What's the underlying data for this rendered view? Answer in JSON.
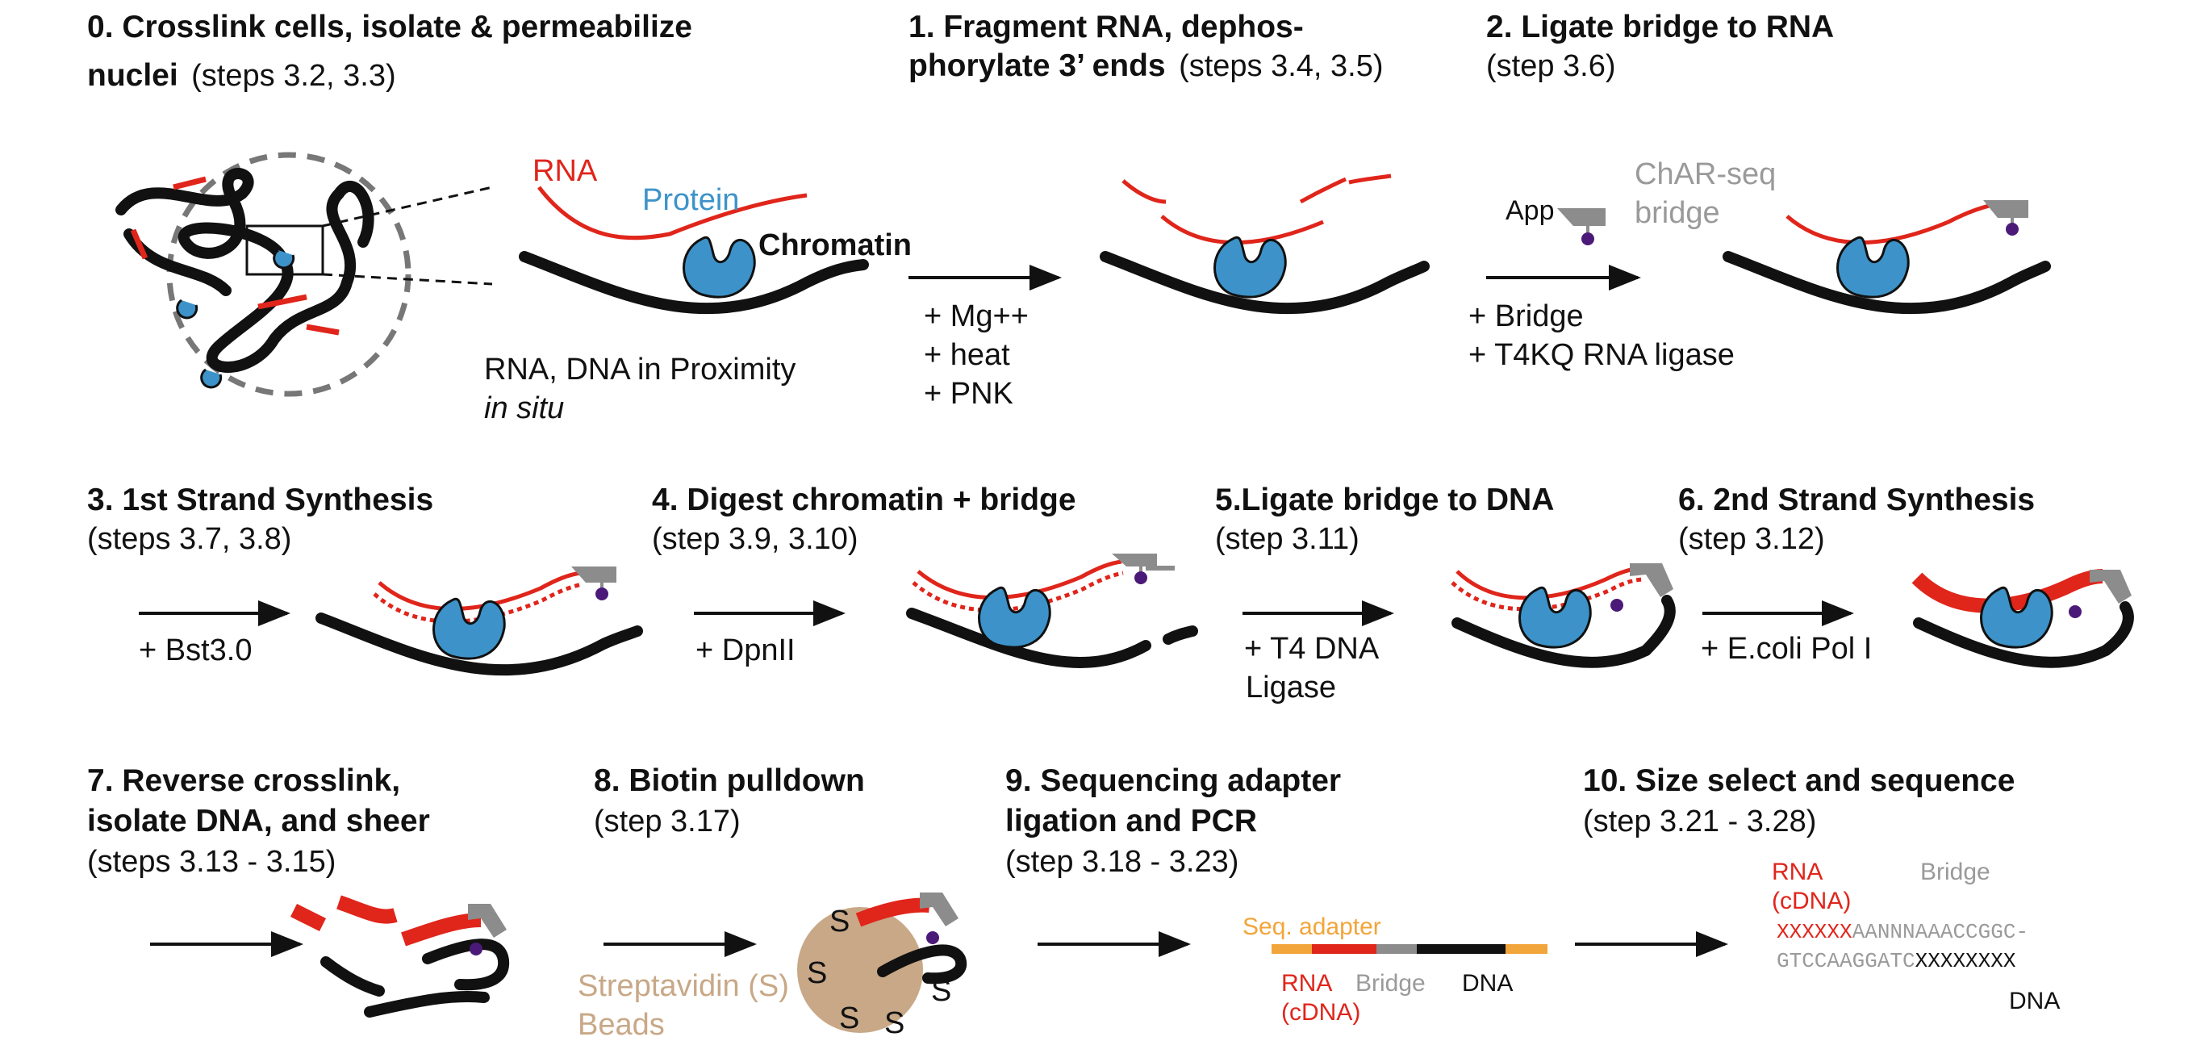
{
  "steps": {
    "s0": {
      "title1": "0. Crosslink cells, isolate & permeabilize",
      "title2": "nuclei",
      "steps": "(steps 3.2, 3.3)"
    },
    "s1": {
      "title1": "1. Fragment RNA, dephos-",
      "title2": "phorylate 3’ ends",
      "steps": "(steps 3.4, 3.5)",
      "reagents": [
        "+ Mg++",
        "+ heat",
        "+ PNK"
      ]
    },
    "s2": {
      "title": "2. Ligate bridge to RNA",
      "steps": "(step 3.6)",
      "reagents": [
        "+ Bridge",
        "+ T4KQ RNA ligase"
      ]
    },
    "s3": {
      "title": "3. 1st Strand Synthesis",
      "steps": "(steps 3.7, 3.8)",
      "reagent": "+ Bst3.0"
    },
    "s4": {
      "title": "4. Digest chromatin + bridge",
      "steps": "(step 3.9, 3.10)",
      "reagent": "+ DpnII"
    },
    "s5": {
      "title": "5.Ligate bridge to DNA",
      "steps": "(step 3.11)",
      "reagents": [
        "+ T4 DNA",
        "Ligase"
      ]
    },
    "s6": {
      "title": "6. 2nd Strand Synthesis",
      "steps": "(step 3.12)",
      "reagent": "+ E.coli Pol I"
    },
    "s7": {
      "title1": "7. Reverse crosslink,",
      "title2": "isolate DNA, and sheer",
      "steps": "(steps 3.13 - 3.15)"
    },
    "s8": {
      "title": "8. Biotin pulldown",
      "steps": "(step 3.17)"
    },
    "s9": {
      "title1": "9. Sequencing adapter",
      "title2": "ligation and PCR",
      "steps": "(step 3.18 - 3.23)"
    },
    "s10": {
      "title": "10. Size select and sequence",
      "steps": "(step 3.21 - 3.28)"
    }
  },
  "labels": {
    "rna": "RNA",
    "protein": "Protein",
    "chromatin": "Chromatin",
    "proximity": "RNA, DNA in Proximity",
    "in_situ": "in situ",
    "app": "App",
    "charseq1": "ChAR-seq",
    "charseq2": "bridge",
    "strep1": "Streptavidin (S)",
    "strep2": "Beads",
    "s_letter": "S",
    "seq_adapter": "Seq. adapter",
    "rna2": "RNA",
    "cdna": "(cDNA)",
    "bridge": "Bridge",
    "dna": "DNA",
    "seq_top_x": "XXXXXX",
    "seq_top_rest": "AANNNAAACCGGC-",
    "seq_bot_rest": "GTCCAAGGATC",
    "seq_bot_x": "XXXXXXXX"
  },
  "colors": {
    "rna": "#e0251b",
    "protein": "#3d93c9",
    "chromatin": "#111111",
    "bridge_gray": "#8c8c8c",
    "biotin": "#4b1a78",
    "bead": "#c8a887",
    "adapter": "#f2a53a"
  }
}
